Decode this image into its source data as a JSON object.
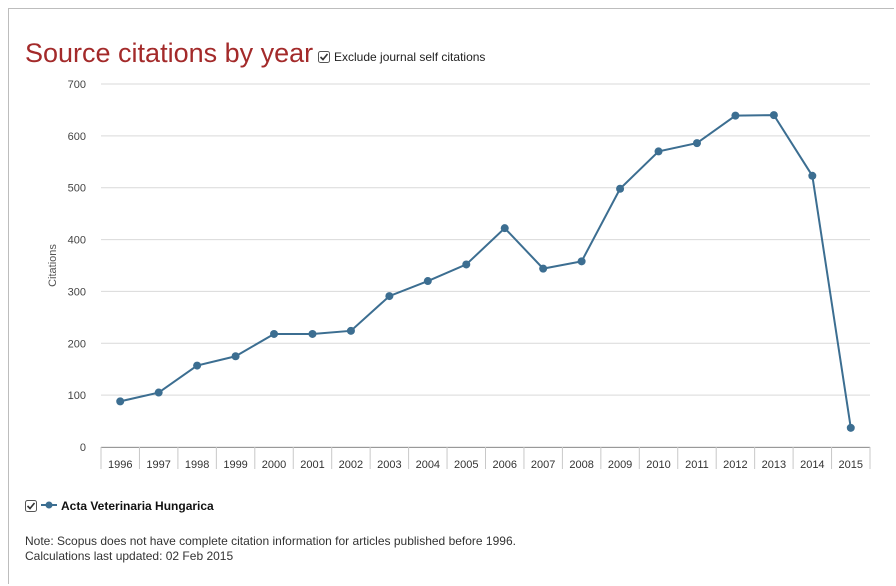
{
  "title": "Source citations by year",
  "exclude_label": "Exclude journal self citations",
  "legend_label": "Acta Veterinaria Hungarica",
  "note_line1": "Note: Scopus does not have complete citation information for articles published before 1996.",
  "note_line2": "Calculations last updated: 02 Feb 2015",
  "colors": {
    "title": "#a32a2a",
    "series": "#3c6e91",
    "grid": "#d9d9d9"
  },
  "chart_data": {
    "type": "line",
    "title": "Source citations by year",
    "xlabel": "",
    "ylabel": "Citations",
    "ylim": [
      0,
      700
    ],
    "yticks": [
      0,
      100,
      200,
      300,
      400,
      500,
      600,
      700
    ],
    "grid": true,
    "legend_position": "bottom-left",
    "categories": [
      "1996",
      "1997",
      "1998",
      "1999",
      "2000",
      "2001",
      "2002",
      "2003",
      "2004",
      "2005",
      "2006",
      "2007",
      "2008",
      "2009",
      "2010",
      "2011",
      "2012",
      "2013",
      "2014",
      "2015"
    ],
    "series": [
      {
        "name": "Acta Veterinaria Hungarica",
        "values": [
          88,
          105,
          157,
          175,
          218,
          218,
          224,
          291,
          320,
          352,
          422,
          344,
          358,
          498,
          570,
          586,
          639,
          640,
          523,
          37
        ]
      }
    ]
  }
}
